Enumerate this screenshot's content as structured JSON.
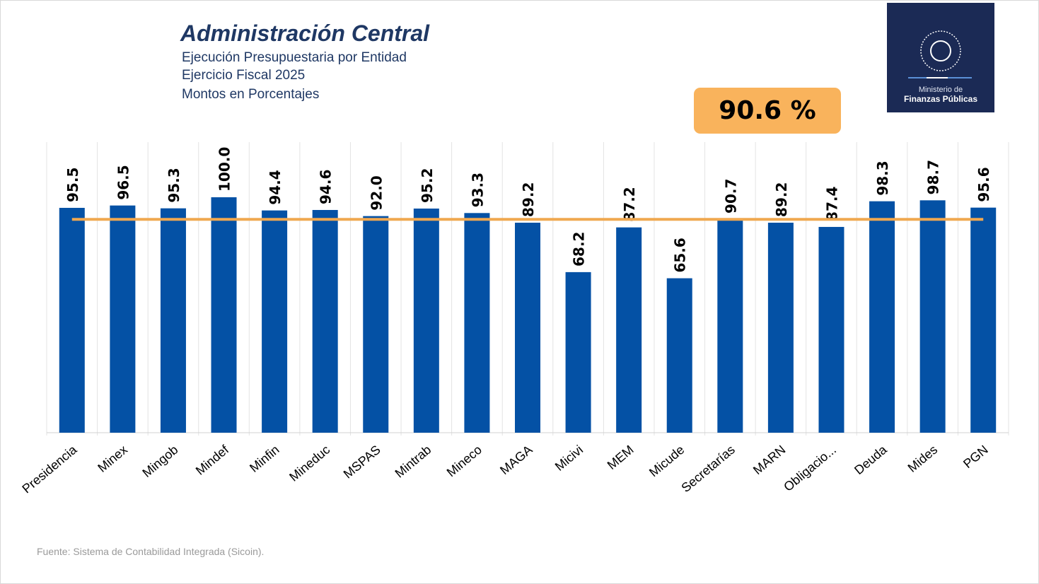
{
  "header": {
    "title": "Administración Central",
    "subtitles": [
      "Ejecución Presupuestaria por Entidad",
      "Ejercicio Fiscal 2025",
      "Montos en Porcentajes"
    ]
  },
  "badge": {
    "value": "90.6 %",
    "color": "#f9b35c"
  },
  "logo": {
    "line1": "Ministerio de",
    "line2": "Finanzas Públicas",
    "seal_text": "GOBIERNO DE LA REPÚBLICA GUATEMALA"
  },
  "footer": {
    "source": "Fuente: Sistema de Contabilidad Integrada (Sicoin)."
  },
  "chart_data": {
    "type": "bar",
    "categories": [
      "Presidencia",
      "Minex",
      "Mingob",
      "Mindef",
      "Minfin",
      "Mineduc",
      "MSPAS",
      "Mintrab",
      "Mineco",
      "MAGA",
      "Micivi",
      "MEM",
      "Micude",
      "Secretarías",
      "MARN",
      "Obligacio...",
      "Deuda",
      "Mides",
      "PGN"
    ],
    "values": [
      95.5,
      96.5,
      95.3,
      100.0,
      94.4,
      94.6,
      92.0,
      95.2,
      93.3,
      89.2,
      68.2,
      87.2,
      65.6,
      90.7,
      89.2,
      87.4,
      98.3,
      98.7,
      95.6
    ],
    "reference_line": {
      "value": 90.6,
      "color": "#f0a850"
    },
    "ylim": [
      0,
      100
    ],
    "bar_color": "#0451a5",
    "grid": "vertical category separators",
    "data_labels": true
  }
}
